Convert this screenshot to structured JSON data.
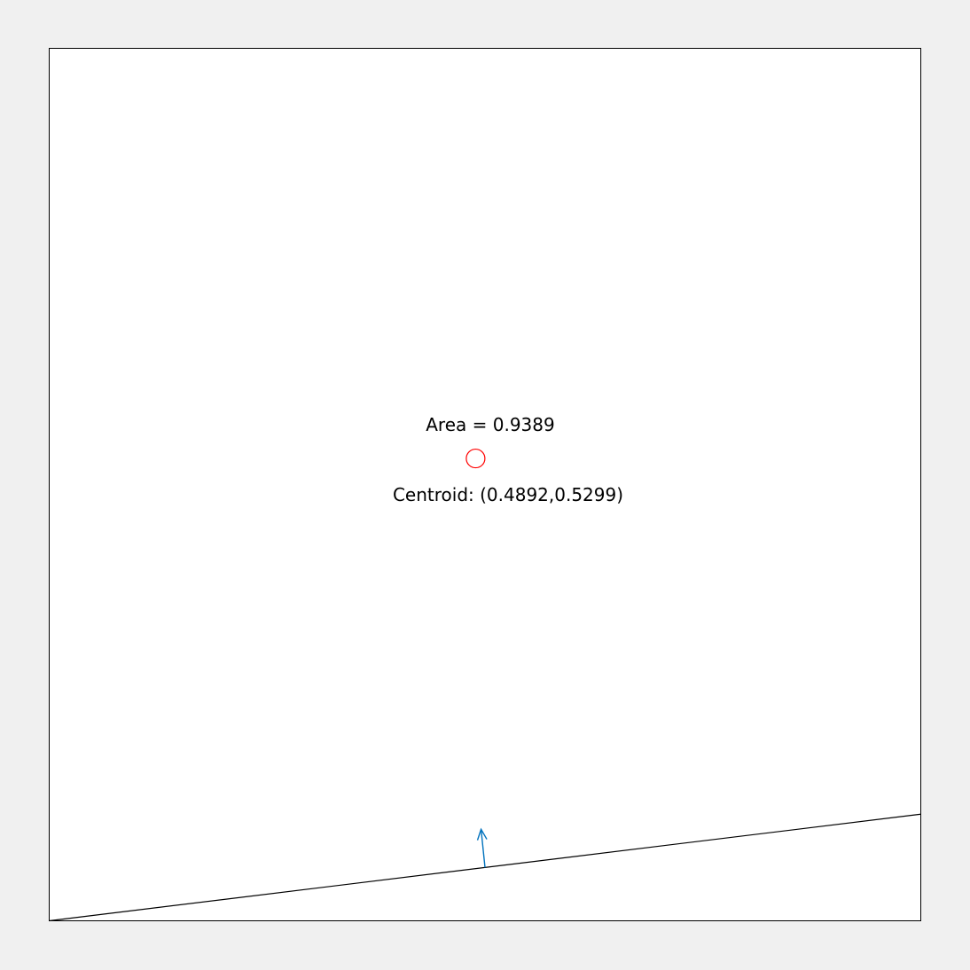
{
  "annotations": {
    "area_label": "Area = 0.9389",
    "centroid_label": "Centroid: (0.4892,0.5299)"
  },
  "geometry": {
    "area": 0.9389,
    "centroid": [
      0.4892,
      0.5299
    ],
    "cut_line": [
      [
        0,
        0
      ],
      [
        1,
        0.1222
      ]
    ],
    "normal_vector": {
      "start": [
        0.5,
        0.0611
      ],
      "end": [
        0.4955,
        0.1049
      ]
    },
    "xlim": [
      0,
      1
    ],
    "ylim": [
      0,
      1
    ]
  },
  "colors": {
    "figure_background": "#f0f0f0",
    "axes_background": "#ffffff",
    "axes_border": "#000000",
    "cut_line": "#000000",
    "normal_arrow": "#0072bd",
    "centroid_marker": "#ff0000",
    "text": "#000000"
  }
}
